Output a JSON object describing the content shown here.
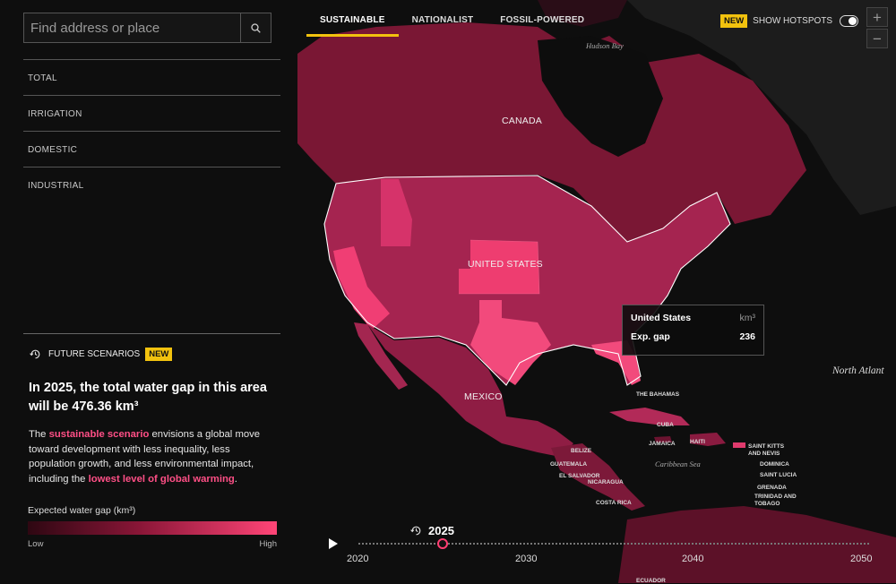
{
  "search": {
    "placeholder": "Find address or place"
  },
  "categories": [
    "TOTAL",
    "IRRIGATION",
    "DOMESTIC",
    "INDUSTRIAL"
  ],
  "scenario_tabs": [
    "SUSTAINABLE",
    "NATIONALIST",
    "FOSSIL-POWERED"
  ],
  "active_tab": "SUSTAINABLE",
  "hotspots": {
    "badge": "NEW",
    "label": "SHOW HOTSPOTS",
    "enabled": false
  },
  "zoom": {
    "in": "+",
    "out": "−"
  },
  "future": {
    "label": "FUTURE SCENARIOS",
    "badge": "NEW"
  },
  "headline": "In 2025, the total water gap in this area will be 476.36 km³",
  "description": {
    "part1": "The ",
    "highlight1": "sustainable scenario",
    "part2": " envisions a global move toward development with less inequality, less population growth, and less environmental impact, including the ",
    "highlight2": "lowest level of global warming",
    "part3": "."
  },
  "legend": {
    "title": "Expected water gap (km³)",
    "low": "Low",
    "high": "High"
  },
  "tooltip": {
    "place": "United States",
    "unit": "km³",
    "metric": "Exp. gap",
    "value": "236"
  },
  "map_labels": {
    "canada": "CANADA",
    "usa": "UNITED STATES",
    "mexico": "MEXICO",
    "hudson": "Hudson Bay",
    "caribbean": "Caribbean Sea",
    "atlantic": "North Atlant",
    "bahamas": "THE BAHAMAS",
    "cuba": "CUBA",
    "jamaica": "JAMAICA",
    "haiti": "HAITI",
    "belize": "BELIZE",
    "guatemala": "GUATEMALA",
    "el_salvador": "EL SALVADOR",
    "nicaragua": "NICARAGUA",
    "costa_rica": "COSTA RICA",
    "st_kitts": "SAINT KITTS AND NEVIS",
    "dominica": "DOMINICA",
    "st_lucia": "SAINT LUCIA",
    "grenada": "GRENADA",
    "trinidad": "TRINIDAD AND TOBAGO",
    "ecuador": "ECUADOR"
  },
  "timeline": {
    "current_year": "2025",
    "ticks": [
      "2020",
      "2030",
      "2040",
      "2050"
    ]
  }
}
